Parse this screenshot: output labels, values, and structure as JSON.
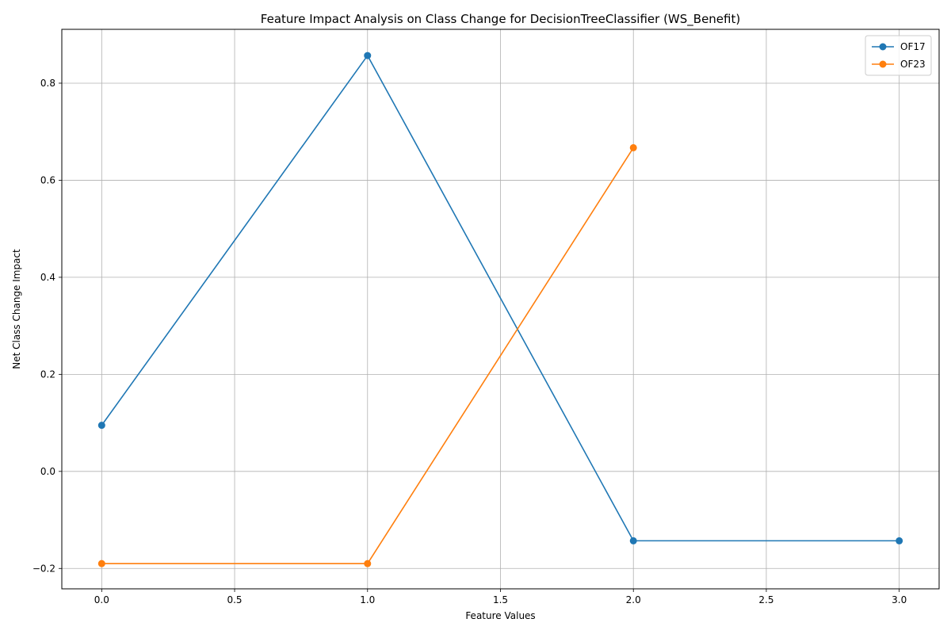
{
  "chart_data": {
    "type": "line",
    "title": "Feature Impact Analysis on Class Change for DecisionTreeClassifier (WS_Benefit)",
    "xlabel": "Feature Values",
    "ylabel": "Net Class Change Impact",
    "xlim": [
      -0.15,
      3.15
    ],
    "ylim": [
      -0.242,
      0.911
    ],
    "xticks": [
      0.0,
      0.5,
      1.0,
      1.5,
      2.0,
      2.5,
      3.0
    ],
    "xtick_labels": [
      "0.0",
      "0.5",
      "1.0",
      "1.5",
      "2.0",
      "2.5",
      "3.0"
    ],
    "yticks": [
      -0.2,
      0.0,
      0.2,
      0.4,
      0.6,
      0.8
    ],
    "ytick_labels": [
      "−0.2",
      "0.0",
      "0.2",
      "0.4",
      "0.6",
      "0.8"
    ],
    "grid": true,
    "legend_position": "top-right",
    "series": [
      {
        "name": "OF17",
        "color": "#1f77b4",
        "x": [
          0,
          1,
          2,
          3
        ],
        "y": [
          0.095,
          0.857,
          -0.143,
          -0.143
        ]
      },
      {
        "name": "OF23",
        "color": "#ff7f0e",
        "x": [
          0,
          1,
          2
        ],
        "y": [
          -0.19,
          -0.19,
          0.667
        ]
      }
    ]
  }
}
